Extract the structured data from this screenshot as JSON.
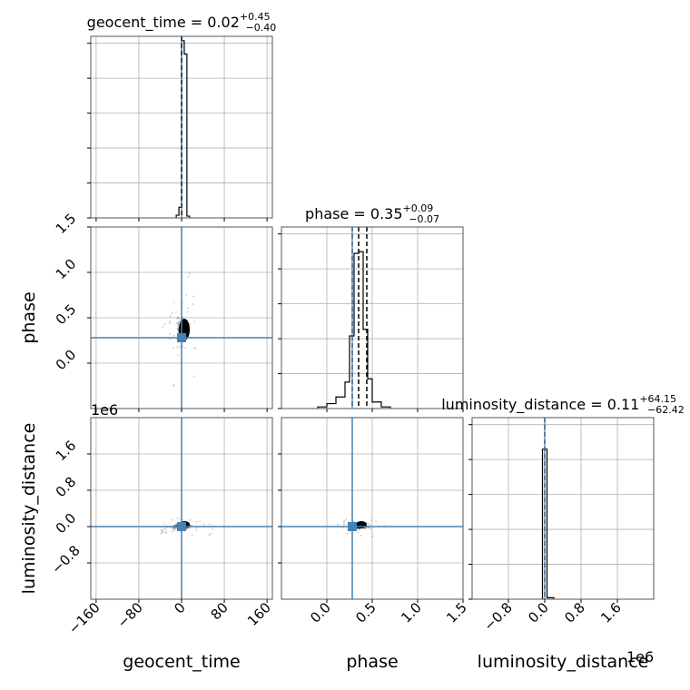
{
  "chart_data": {
    "type": "corner",
    "parameters": [
      "geocent_time",
      "phase",
      "luminosity_distance"
    ],
    "axis_labels": {
      "geocent_time": "geocent_time",
      "phase": "phase",
      "luminosity_distance": "luminosity_distance"
    },
    "offset_labels": {
      "luminosity_distance_y": "1e6",
      "luminosity_distance_x": "1e6"
    },
    "titles": [
      {
        "param": "geocent_time",
        "name": "geocent_time",
        "median": "0.02",
        "plus": "+0.45",
        "minus": "−0.40"
      },
      {
        "param": "phase",
        "name": "phase",
        "median": "0.35",
        "plus": "+0.09",
        "minus": "−0.07"
      },
      {
        "param": "luminosity_distance",
        "name": "luminosity_distance",
        "median": "0.11",
        "plus": "+64.15",
        "minus": "−62.42"
      }
    ],
    "ranges": {
      "geocent_time": [
        -170,
        170
      ],
      "phase": [
        -0.5,
        1.5
      ],
      "luminosity_distance": [
        -1.6,
        2.4
      ]
    },
    "ticks": {
      "geocent_time": {
        "values": [
          -160,
          -80,
          0,
          80,
          160
        ],
        "labels": [
          "−160",
          "−80",
          "0",
          "80",
          "160"
        ]
      },
      "phase": {
        "values": [
          0.0,
          0.5,
          1.0,
          1.5
        ],
        "labels": [
          "0.0",
          "0.5",
          "1.0",
          "1.5"
        ]
      },
      "luminosity_distance": {
        "values": [
          -0.8,
          0.0,
          0.8,
          1.6
        ],
        "labels": [
          "−0.8",
          "0.0",
          "0.8",
          "1.6"
        ]
      }
    },
    "truths": {
      "geocent_time": 0.0,
      "phase": 0.28,
      "luminosity_distance": 0.0
    },
    "histograms": {
      "geocent_time": {
        "bins": [
          [
            -10,
            -5
          ],
          [
            -5,
            0
          ],
          [
            0,
            5
          ],
          [
            5,
            10
          ],
          [
            10,
            15
          ]
        ],
        "counts": [
          3,
          12,
          200,
          185,
          2
        ],
        "ymax": 205,
        "quantiles": [
          -0.38,
          0.02,
          0.47
        ]
      },
      "phase": {
        "bins": [
          [
            -0.1,
            0.0
          ],
          [
            0.0,
            0.1
          ],
          [
            0.1,
            0.2
          ],
          [
            0.2,
            0.25
          ],
          [
            0.25,
            0.3
          ],
          [
            0.3,
            0.35
          ],
          [
            0.35,
            0.4
          ],
          [
            0.4,
            0.45
          ],
          [
            0.45,
            0.5
          ],
          [
            0.5,
            0.6
          ],
          [
            0.6,
            0.7
          ]
        ],
        "counts": [
          1,
          3,
          7,
          16,
          44,
          94,
          95,
          48,
          18,
          4,
          1
        ],
        "ymax": 110,
        "quantiles": [
          0.28,
          0.35,
          0.44
        ]
      },
      "luminosity_distance": {
        "bins": [
          [
            -0.05,
            0.0
          ],
          [
            0.0,
            0.05
          ],
          [
            0.05,
            0.2
          ]
        ],
        "counts": [
          200,
          200,
          2
        ],
        "ymax": 242,
        "quantiles": [
          0.0
        ]
      }
    }
  }
}
